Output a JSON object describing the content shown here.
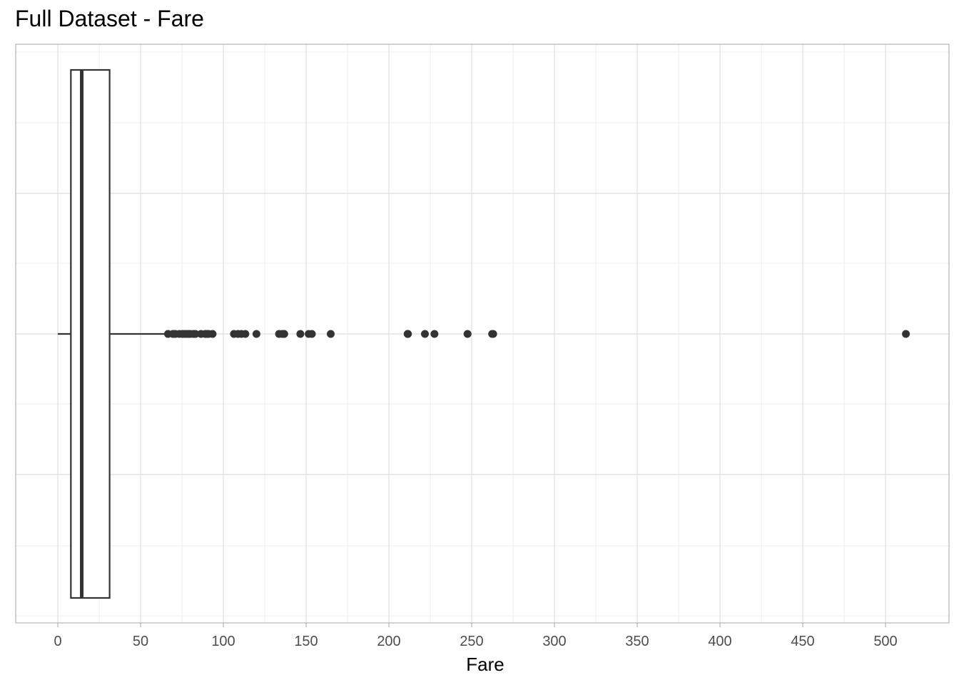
{
  "chart_data": {
    "type": "boxplot",
    "title": "Full Dataset - Fare",
    "xlabel": "Fare",
    "ylabel": "",
    "xlim": [
      -25,
      540
    ],
    "x_ticks": [
      0,
      50,
      100,
      150,
      200,
      250,
      300,
      350,
      400,
      450,
      500
    ],
    "x_tick_labels": [
      "0",
      "50",
      "100",
      "150",
      "200",
      "250",
      "300",
      "350",
      "400",
      "450",
      "500"
    ],
    "grid": true,
    "orientation": "horizontal",
    "box": {
      "whisker_low": 0,
      "q1": 7.9,
      "median": 14.45,
      "q3": 31.3,
      "whisker_high": 66.6
    },
    "outliers": [
      66.6,
      69.55,
      71.0,
      73.5,
      75.25,
      76.7,
      77.95,
      79.2,
      80.0,
      81.9,
      83.16,
      86.5,
      89.1,
      90.0,
      91.08,
      93.5,
      106.43,
      108.9,
      110.88,
      113.28,
      120.0,
      133.65,
      135.63,
      136.78,
      146.52,
      151.55,
      153.46,
      164.87,
      211.34,
      211.5,
      221.78,
      227.53,
      247.52,
      262.38,
      263.0,
      512.33
    ],
    "colors": {
      "stroke": "#333333",
      "points": "#333333",
      "grid_major": "#dedede",
      "grid_minor": "#ececec",
      "panel_border": "#b3b3b3",
      "fill": "#ffffff"
    }
  }
}
